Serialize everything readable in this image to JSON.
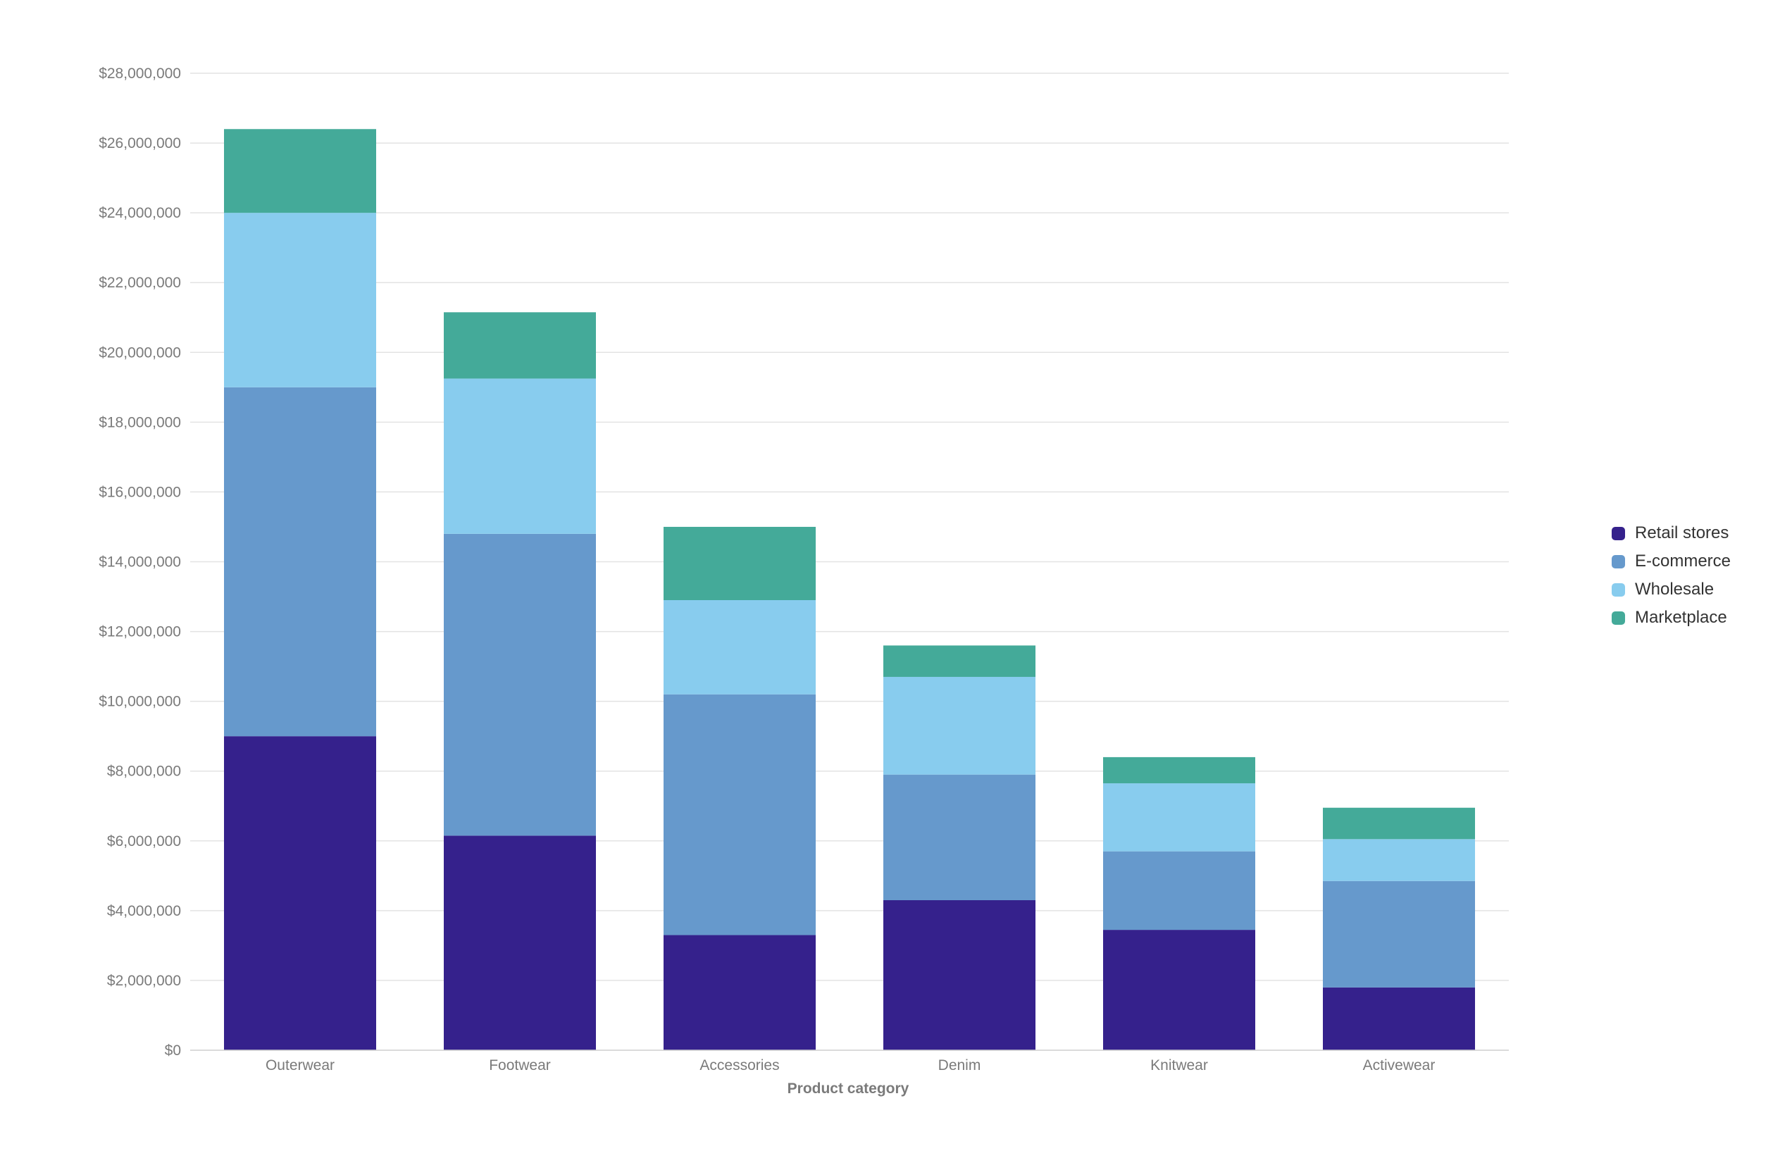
{
  "chart_data": {
    "type": "bar",
    "stacked": true,
    "xlabel": "Product category",
    "ylabel": "",
    "ylim": [
      0,
      28000000
    ],
    "y_tick_step": 2000000,
    "y_tick_format": "currency-usd",
    "grid": true,
    "legend_position": "right",
    "categories": [
      "Outerwear",
      "Footwear",
      "Accessories",
      "Denim",
      "Knitwear",
      "Activewear"
    ],
    "series": [
      {
        "name": "Retail stores",
        "color": "#35218c",
        "values": [
          9000000,
          6150000,
          3300000,
          4300000,
          3450000,
          1800000
        ]
      },
      {
        "name": "E-commerce",
        "color": "#6699cc",
        "values": [
          10000000,
          8650000,
          6900000,
          3600000,
          2250000,
          3050000
        ]
      },
      {
        "name": "Wholesale",
        "color": "#88ccee",
        "values": [
          5000000,
          4450000,
          2700000,
          2800000,
          1950000,
          1200000
        ]
      },
      {
        "name": "Marketplace",
        "color": "#44aa99",
        "values": [
          2400000,
          1900000,
          2100000,
          900000,
          750000,
          900000
        ]
      }
    ]
  }
}
